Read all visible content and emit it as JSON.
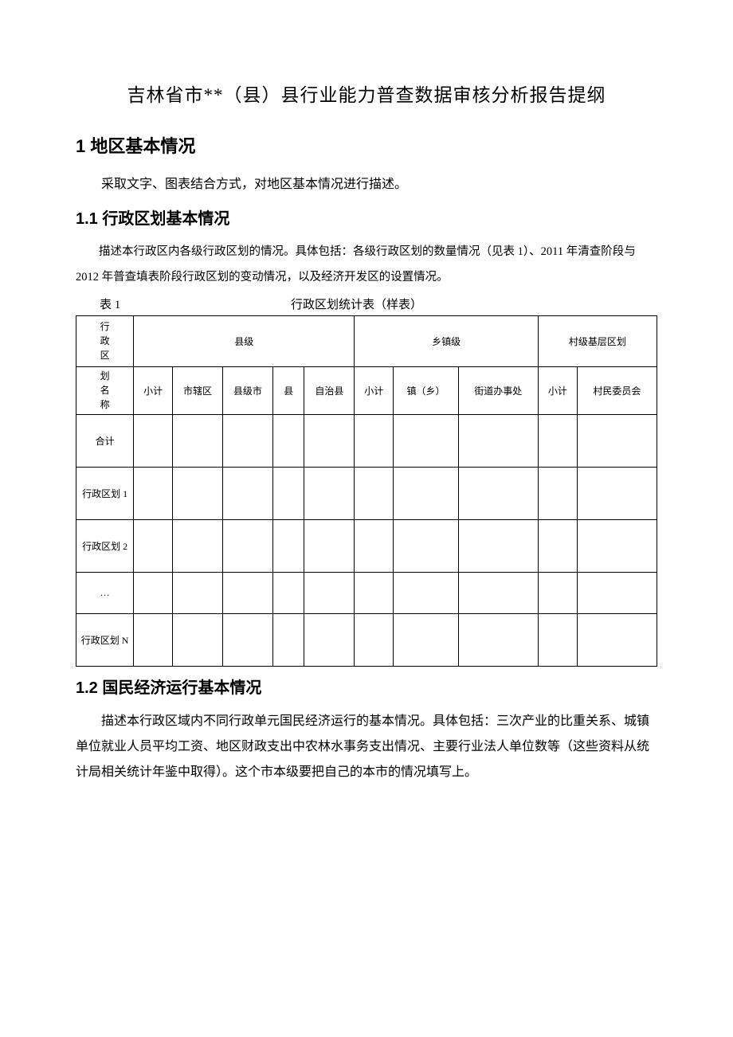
{
  "title": "吉林省市**（县）县行业能力普查数据审核分析报告提纲",
  "sections": {
    "s1": {
      "heading": "1 地区基本情况",
      "intro": "采取文字、图表结合方式，对地区基本情况进行描述。"
    },
    "s1_1": {
      "heading": "1.1 行政区划基本情况",
      "para": "描述本行政区内各级行政区划的情况。具体包括：各级行政区划的数量情况（见表 1）、2011 年清查阶段与 2012 年普查填表阶段行政区划的变动情况，以及经济开发区的设置情况。"
    },
    "s1_2": {
      "heading": "1.2 国民经济运行基本情况",
      "para": "描述本行政区域内不同行政单元国民经济运行的基本情况。具体包括：三次产业的比重关系、城镇单位就业人员平均工资、地区财政支出中农林水事务支出情况、主要行业法人单位数等（这些资料从统计局相关统计年鉴中取得）。这个市本级要把自己的本市的情况填写上。"
    }
  },
  "table1": {
    "label": "表 1",
    "title": "行政区划统计表（样表）",
    "row_header_top": "行政区",
    "row_header_bottom": "划名称",
    "group_headers": {
      "county": "县级",
      "town": "乡镇级",
      "village": "村级基层区划"
    },
    "columns": {
      "xiaoji1": "小计",
      "shixiaqu": "市辖区",
      "xianjishi": "县级市",
      "xian": "县",
      "zizhixian": "自治县",
      "xiaoji2": "小计",
      "zhenxiang": "镇（乡）",
      "jiedao": "街道办事处",
      "xiaoji3": "小计",
      "cunmin": "村民委员会"
    },
    "rows": [
      {
        "label": "合计",
        "cells": [
          "",
          "",
          "",
          "",
          "",
          "",
          "",
          "",
          "",
          ""
        ]
      },
      {
        "label": "行政区划 1",
        "cells": [
          "",
          "",
          "",
          "",
          "",
          "",
          "",
          "",
          "",
          ""
        ]
      },
      {
        "label": "行政区划 2",
        "cells": [
          "",
          "",
          "",
          "",
          "",
          "",
          "",
          "",
          "",
          ""
        ]
      },
      {
        "label": "…",
        "cells": [
          "",
          "",
          "",
          "",
          "",
          "",
          "",
          "",
          "",
          ""
        ]
      },
      {
        "label": "行政区划 N",
        "cells": [
          "",
          "",
          "",
          "",
          "",
          "",
          "",
          "",
          "",
          ""
        ]
      }
    ]
  },
  "styling": {
    "page_bg": "#ffffff",
    "text_color": "#000000",
    "border_color": "#000000",
    "title_fontsize": 23,
    "h1_fontsize": 22,
    "h2_fontsize": 20,
    "body_fontsize": 16,
    "small_body_fontsize": 14.5,
    "table_fontsize": 12,
    "border_width": 1.5
  }
}
